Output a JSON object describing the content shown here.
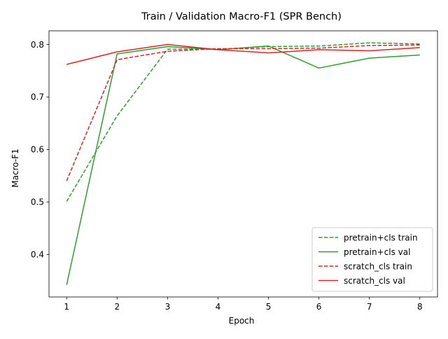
{
  "chart_data": {
    "type": "line",
    "title": "Train / Validation Macro-F1 (SPR Bench)",
    "xlabel": "Epoch",
    "ylabel": "Macro-F1",
    "x": [
      1,
      2,
      3,
      4,
      5,
      6,
      7,
      8
    ],
    "xticks": [
      "1",
      "2",
      "3",
      "4",
      "5",
      "6",
      "7",
      "8"
    ],
    "yticks": [
      "0.4",
      "0.5",
      "0.6",
      "0.7",
      "0.8"
    ],
    "ytick_values": [
      0.4,
      0.5,
      0.6,
      0.7,
      0.8
    ],
    "xlim": [
      0.65,
      8.35
    ],
    "ylim": [
      0.319,
      0.826
    ],
    "grid": false,
    "legend_position": "lower right",
    "series": [
      {
        "name": "pretrain+cls train",
        "color": "#2ca02c",
        "dash": "dashed",
        "values": [
          0.501,
          0.664,
          0.791,
          0.791,
          0.796,
          0.797,
          0.803,
          0.801
        ]
      },
      {
        "name": "pretrain+cls val",
        "color": "#2ca02c",
        "dash": "solid",
        "values": [
          0.342,
          0.782,
          0.796,
          0.79,
          0.797,
          0.755,
          0.774,
          0.78
        ]
      },
      {
        "name": "scratch_cls train",
        "color": "#d62728",
        "dash": "dashed",
        "values": [
          0.54,
          0.771,
          0.787,
          0.792,
          0.792,
          0.793,
          0.798,
          0.799
        ]
      },
      {
        "name": "scratch_cls val",
        "color": "#d62728",
        "dash": "solid",
        "values": [
          0.762,
          0.786,
          0.8,
          0.79,
          0.784,
          0.79,
          0.788,
          0.794
        ]
      }
    ]
  }
}
